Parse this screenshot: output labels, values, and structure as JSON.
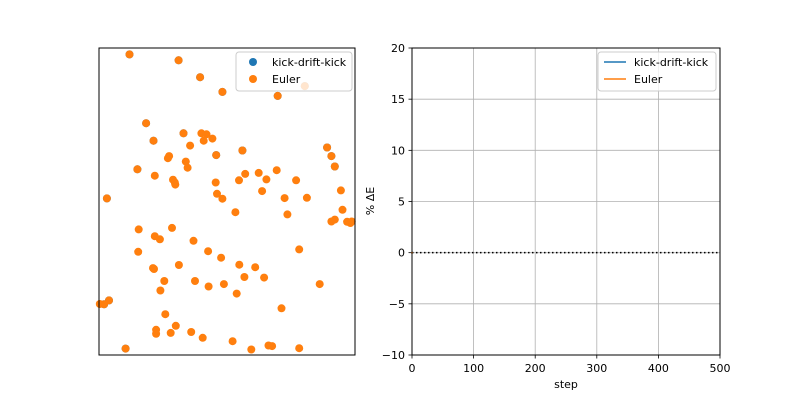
{
  "chart_data": [
    {
      "type": "scatter",
      "title": "",
      "xlabel": "",
      "ylabel": "",
      "axes_ticks": "hidden",
      "xlim": [
        0,
        1
      ],
      "ylim": [
        0,
        1
      ],
      "legend": {
        "placement": "top-right",
        "entries": [
          "kick-drift-kick",
          "Euler"
        ]
      },
      "series": [
        {
          "name": "kick-drift-kick",
          "color": "#1f77b4",
          "points": [
            [
              0.104,
              0.021
            ],
            [
              0.119,
              0.979
            ],
            [
              0.039,
              0.178
            ],
            [
              0.02,
              0.165
            ],
            [
              0.031,
              0.51
            ],
            [
              0.15,
              0.605
            ],
            [
              0.184,
              0.755
            ],
            [
              0.213,
              0.698
            ],
            [
              0.311,
              0.96
            ],
            [
              0.33,
              0.722
            ],
            [
              0.395,
              0.905
            ],
            [
              0.482,
              0.857
            ],
            [
              0.458,
              0.651
            ],
            [
              0.56,
              0.666
            ],
            [
              0.698,
              0.844
            ],
            [
              0.804,
              0.876
            ],
            [
              0.891,
              0.676
            ],
            [
              0.908,
              0.648
            ],
            [
              0.921,
              0.614
            ]
          ]
        },
        {
          "name": "Euler",
          "color": "#ff7f0e",
          "points": [
            [
              0.104,
              0.021
            ],
            [
              0.119,
              0.979
            ],
            [
              0.039,
              0.178
            ],
            [
              0.02,
              0.165
            ],
            [
              0.031,
              0.51
            ],
            [
              0.15,
              0.605
            ],
            [
              0.184,
              0.755
            ],
            [
              0.213,
              0.698
            ],
            [
              0.311,
              0.96
            ],
            [
              0.33,
              0.722
            ],
            [
              0.395,
              0.905
            ],
            [
              0.482,
              0.857
            ],
            [
              0.458,
              0.651
            ],
            [
              0.56,
              0.666
            ],
            [
              0.698,
              0.844
            ],
            [
              0.804,
              0.876
            ],
            [
              0.891,
              0.676
            ],
            [
              0.908,
              0.648
            ],
            [
              0.921,
              0.614
            ],
            [
              0.218,
              0.584
            ],
            [
              0.269,
              0.641
            ],
            [
              0.274,
              0.648
            ],
            [
              0.289,
              0.571
            ],
            [
              0.298,
              0.555
            ],
            [
              0.296,
              0.562
            ],
            [
              0.339,
              0.63
            ],
            [
              0.346,
              0.61
            ],
            [
              0.356,
              0.682
            ],
            [
              0.4,
              0.722
            ],
            [
              0.409,
              0.698
            ],
            [
              0.42,
              0.719
            ],
            [
              0.443,
              0.705
            ],
            [
              0.456,
              0.562
            ],
            [
              0.461,
              0.525
            ],
            [
              0.482,
              0.509
            ],
            [
              0.533,
              0.465
            ],
            [
              0.547,
              0.569
            ],
            [
              0.571,
              0.59
            ],
            [
              0.624,
              0.593
            ],
            [
              0.637,
              0.534
            ],
            [
              0.654,
              0.572
            ],
            [
              0.694,
              0.602
            ],
            [
              0.725,
              0.511
            ],
            [
              0.736,
              0.458
            ],
            [
              0.77,
              0.569
            ],
            [
              0.812,
              0.512
            ],
            [
              0.908,
              0.435
            ],
            [
              0.921,
              0.441
            ],
            [
              0.969,
              0.434
            ],
            [
              0.951,
              0.473
            ],
            [
              0.945,
              0.536
            ],
            [
              0.982,
              0.43
            ],
            [
              0.987,
              0.435
            ],
            [
              0.155,
              0.409
            ],
            [
              0.153,
              0.336
            ],
            [
              0.238,
              0.377
            ],
            [
              0.285,
              0.414
            ],
            [
              0.312,
              0.293
            ],
            [
              0.369,
              0.372
            ],
            [
              0.426,
              0.338
            ],
            [
              0.477,
              0.317
            ],
            [
              0.548,
              0.294
            ],
            [
              0.568,
              0.254
            ],
            [
              0.61,
              0.286
            ],
            [
              0.645,
              0.252
            ],
            [
              0.218,
              0.387
            ],
            [
              0.255,
              0.241
            ],
            [
              0.375,
              0.241
            ],
            [
              0.428,
              0.223
            ],
            [
              0.488,
              0.231
            ],
            [
              0.538,
              0.2
            ],
            [
              0.215,
              0.28
            ],
            [
              0.24,
              0.21
            ],
            [
              0.211,
              0.283
            ],
            [
              0.223,
              0.069
            ],
            [
              0.28,
              0.072
            ],
            [
              0.223,
              0.082
            ],
            [
              0.259,
              0.133
            ],
            [
              0.3,
              0.095
            ],
            [
              0.36,
              0.075
            ],
            [
              0.405,
              0.056
            ],
            [
              0.522,
              0.045
            ],
            [
              0.595,
              0.018
            ],
            [
              0.662,
              0.031
            ],
            [
              0.676,
              0.029
            ],
            [
              0.782,
              0.344
            ],
            [
              0.862,
              0.231
            ],
            [
              0.713,
              0.152
            ],
            [
              0.782,
              0.022
            ],
            [
              0.003,
              0.166
            ]
          ]
        }
      ]
    },
    {
      "type": "line",
      "title": "",
      "xlabel": "step",
      "ylabel": "% ΔE",
      "xlim": [
        0,
        500
      ],
      "ylim": [
        -10,
        20
      ],
      "xticks": [
        0,
        100,
        200,
        300,
        400,
        500
      ],
      "yticks": [
        -10,
        -5,
        0,
        5,
        10,
        15,
        20
      ],
      "xtick_labels": [
        "0",
        "100",
        "200",
        "300",
        "400",
        "500"
      ],
      "ytick_labels": [
        "−10",
        "−5",
        "0",
        "5",
        "10",
        "15",
        "20"
      ],
      "grid": true,
      "legend": {
        "placement": "top-right",
        "entries": [
          "kick-drift-kick",
          "Euler"
        ]
      },
      "reference_line": {
        "y": 0,
        "style": "dotted",
        "color": "#000000"
      },
      "series": [
        {
          "name": "kick-drift-kick",
          "color": "#1f77b4",
          "x": [
            0
          ],
          "y": [
            0
          ]
        },
        {
          "name": "Euler",
          "color": "#ff7f0e",
          "x": [
            0
          ],
          "y": [
            0
          ]
        }
      ]
    }
  ]
}
